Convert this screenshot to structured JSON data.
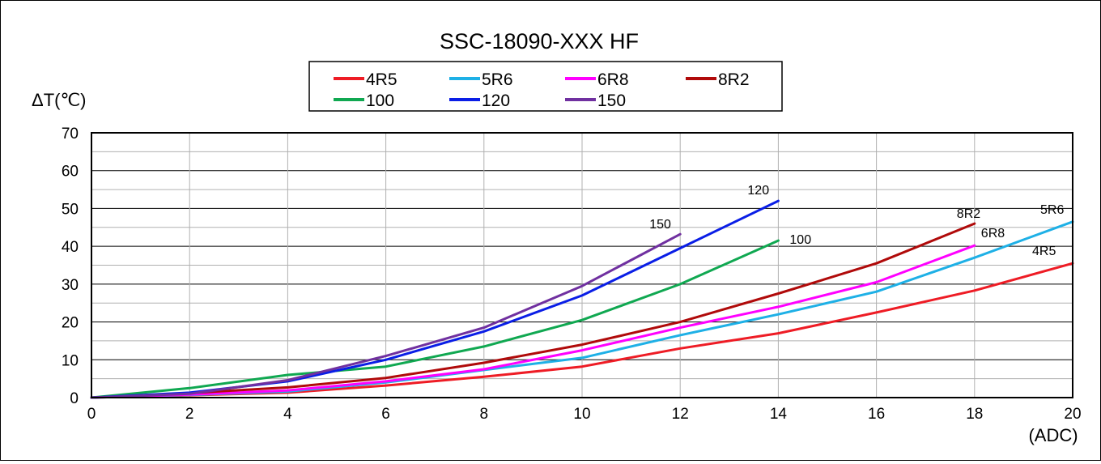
{
  "chart_data": {
    "type": "line",
    "title": "SSC-18090-XXX HF",
    "ylabel": "ΔT(℃)",
    "xlabel": "(ADC)",
    "xlim": [
      0,
      20
    ],
    "ylim": [
      0,
      70
    ],
    "x_ticks": [
      0,
      2,
      4,
      6,
      8,
      10,
      12,
      14,
      16,
      18,
      20
    ],
    "y_ticks": [
      0,
      10,
      20,
      30,
      40,
      50,
      60,
      70
    ],
    "grid": true,
    "legend_position": "top-center",
    "series": [
      {
        "name": "4R5",
        "label": "4R5",
        "color": "#ee1c25",
        "x": [
          0,
          2,
          4,
          6,
          8,
          10,
          12,
          14,
          16,
          18,
          20
        ],
        "y": [
          0,
          0.6,
          1.3,
          3.2,
          5.5,
          8.2,
          13.0,
          17.0,
          22.5,
          28.3,
          35.5
        ]
      },
      {
        "name": "5R6",
        "label": "5R6",
        "color": "#1eb0e6",
        "x": [
          0,
          2,
          4,
          6,
          8,
          10,
          12,
          14,
          16,
          18,
          20
        ],
        "y": [
          0,
          0.7,
          1.6,
          4.0,
          7.3,
          10.5,
          16.5,
          22.0,
          28.0,
          37.0,
          46.5
        ]
      },
      {
        "name": "6R8",
        "label": "6R8",
        "color": "#ff00ff",
        "x": [
          0,
          2,
          4,
          6,
          8,
          10,
          12,
          14,
          16,
          18
        ],
        "y": [
          0,
          0.8,
          1.9,
          4.3,
          7.5,
          12.5,
          18.5,
          24.0,
          30.5,
          40.2
        ]
      },
      {
        "name": "8R2",
        "label": "8R2",
        "color": "#b00a0a",
        "x": [
          0,
          2,
          4,
          6,
          8,
          10,
          12,
          14,
          16,
          18
        ],
        "y": [
          0,
          1.2,
          2.7,
          5.2,
          9.2,
          14.0,
          20.0,
          27.5,
          35.5,
          46.0
        ]
      },
      {
        "name": "100",
        "label": "100",
        "color": "#10a851",
        "x": [
          0,
          2,
          4,
          6,
          8,
          10,
          12,
          14
        ],
        "y": [
          0,
          2.5,
          6.0,
          8.2,
          13.5,
          20.5,
          30.0,
          41.5
        ]
      },
      {
        "name": "120",
        "label": "120",
        "color": "#0a1ee6",
        "x": [
          0,
          2,
          4,
          6,
          8,
          10,
          12,
          14
        ],
        "y": [
          0,
          1.3,
          4.3,
          10.0,
          17.5,
          27.0,
          39.5,
          52.0
        ]
      },
      {
        "name": "150",
        "label": "150",
        "color": "#7030a0",
        "x": [
          0,
          2,
          4,
          6,
          8,
          10,
          12
        ],
        "y": [
          0,
          1.0,
          4.6,
          11.0,
          18.5,
          29.5,
          43.2
        ]
      }
    ]
  }
}
